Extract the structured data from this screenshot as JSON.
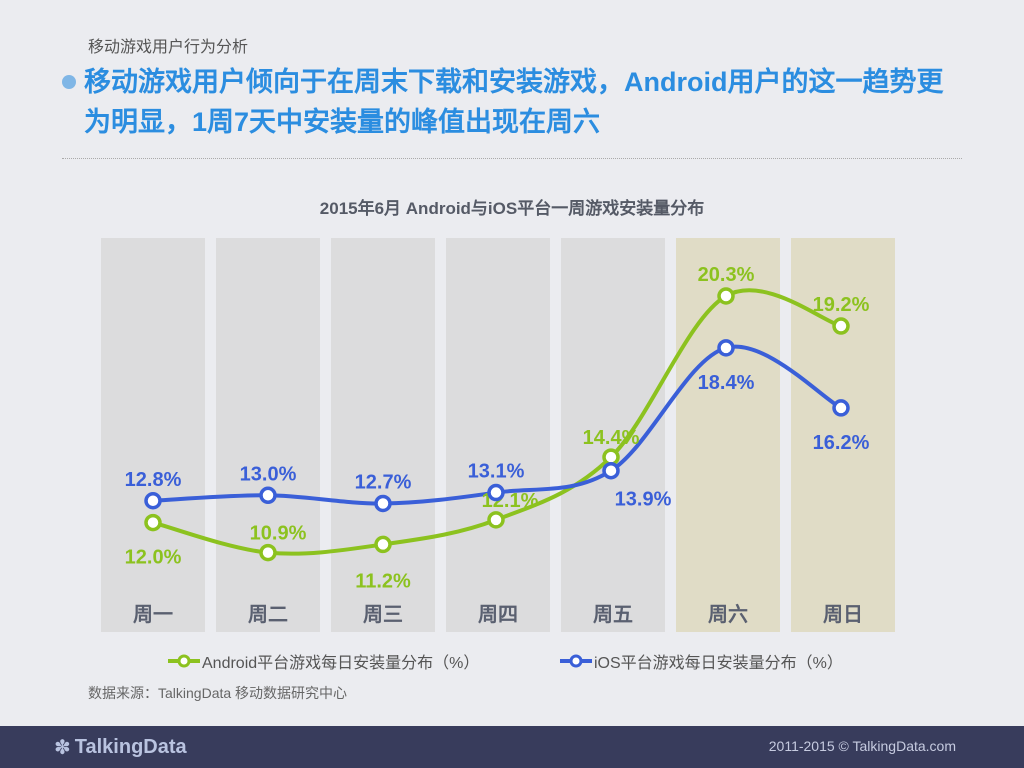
{
  "section_title": "移动游戏用户行为分析",
  "headline": "移动游戏用户倾向于在周末下载和安装游戏，Android用户的这一趋势更为明显，1周7天中安装量的峰值出现在周六",
  "source": "数据来源：TalkingData 移动数据研究中心",
  "footer": {
    "logo": "TalkingData",
    "copyright": "2011-2015 © TalkingData.com"
  },
  "chart_data": {
    "type": "line",
    "title": "2015年6月 Android与iOS平台一周游戏安装量分布",
    "categories": [
      "周一",
      "周二",
      "周三",
      "周四",
      "周五",
      "周六",
      "周日"
    ],
    "highlighted_categories": [
      "周六",
      "周日"
    ],
    "series": [
      {
        "name": "Android平台游戏每日安装量分布（%）",
        "color": "#8cc21f",
        "values": [
          12.0,
          10.9,
          11.2,
          12.1,
          14.4,
          20.3,
          19.2
        ],
        "labels": [
          "12.0%",
          "10.9%",
          "11.2%",
          "12.1%",
          "14.4%",
          "20.3%",
          "19.2%"
        ]
      },
      {
        "name": "iOS平台游戏每日安装量分布（%）",
        "color": "#3a5fd8",
        "values": [
          12.8,
          13.0,
          12.7,
          13.1,
          13.9,
          18.4,
          16.2
        ],
        "labels": [
          "12.8%",
          "13.0%",
          "12.7%",
          "13.1%",
          "13.9%",
          "18.4%",
          "16.2%"
        ]
      }
    ],
    "legend": "bottom",
    "grid": false,
    "colors": {
      "column": "#dcdcdd",
      "weekend_column": "#e0dcc6",
      "day_label": "#5a6070"
    }
  }
}
